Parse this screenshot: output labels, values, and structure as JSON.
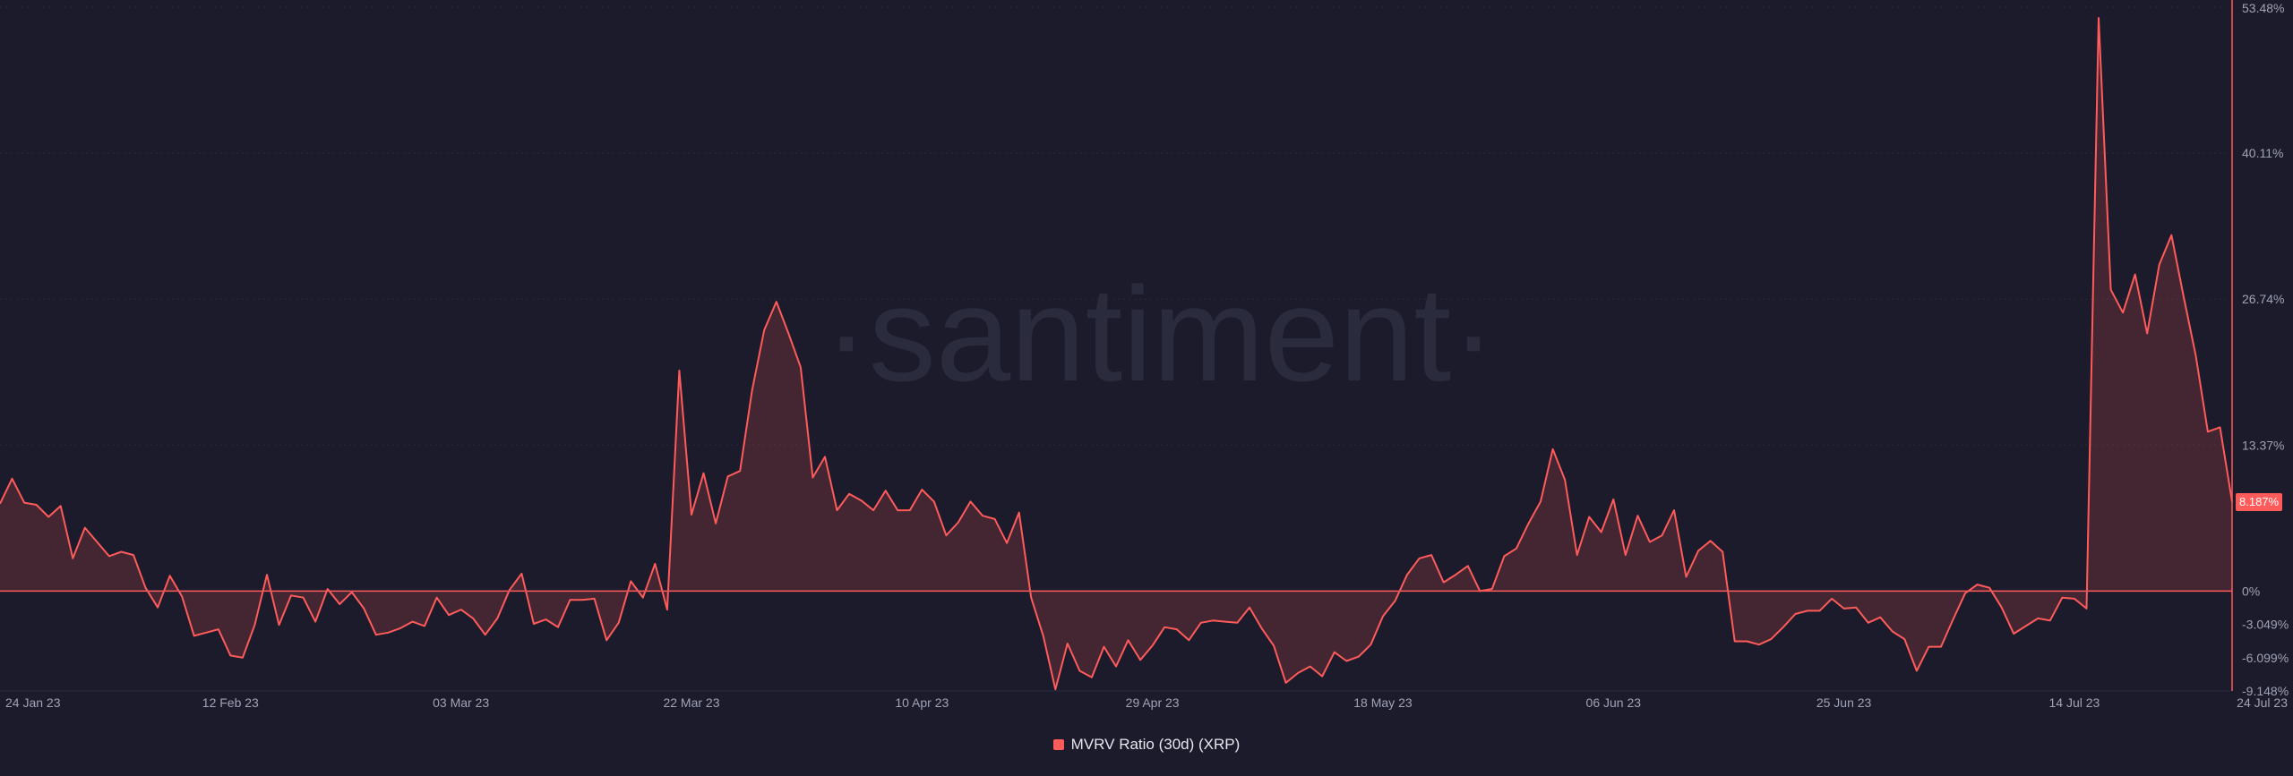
{
  "watermark": "·santiment·",
  "colors": {
    "line": "#ff5b5b",
    "fill": "rgba(255,91,91,0.18)",
    "grid": "#2a2b3d",
    "zero": "#ff5b5b",
    "background": "#1b1b2b"
  },
  "legend": {
    "label": "MVRV Ratio (30d) (XRP)"
  },
  "last_value_label": "8.187%",
  "chart_data": {
    "type": "area",
    "title": "",
    "xlabel": "",
    "ylabel": "",
    "ylim": [
      -9.148,
      53.48
    ],
    "y_ticks": [
      53.48,
      40.11,
      26.74,
      13.37,
      0,
      -3.049,
      -6.099,
      -9.148
    ],
    "y_tick_labels": [
      "53.48%",
      "40.11%",
      "26.74%",
      "13.37%",
      "0%",
      "-3.049%",
      "-6.099%",
      "-9.148%"
    ],
    "x_ticks": [
      0,
      19,
      38,
      57,
      76,
      95,
      114,
      133,
      152,
      171,
      180
    ],
    "x_tick_labels": [
      "24 Jan 23",
      "12 Feb 23",
      "03 Mar 23",
      "22 Mar 23",
      "10 Apr 23",
      "29 Apr 23",
      "18 May 23",
      "06 Jun 23",
      "25 Jun 23",
      "14 Jul 23",
      "24 Jul 23"
    ],
    "series": [
      {
        "name": "MVRV Ratio (30d) (XRP)",
        "values": [
          8,
          10.3,
          8.1,
          7.9,
          6.8,
          7.8,
          3,
          5.8,
          4.5,
          3.2,
          3.6,
          3.3,
          0.3,
          -1.5,
          1.4,
          -0.5,
          -4.1,
          -3.8,
          -3.5,
          -5.9,
          -6.1,
          -3.1,
          1.5,
          -3.1,
          -0.4,
          -0.6,
          -2.8,
          0.2,
          -1.2,
          -0.1,
          -1.6,
          -4,
          -3.8,
          -3.4,
          -2.8,
          -3.2,
          -0.6,
          -2.2,
          -1.7,
          -2.5,
          -4,
          -2.5,
          0.1,
          1.6,
          -3,
          -2.6,
          -3.3,
          -0.8,
          -0.8,
          -0.7,
          -4.5,
          -2.9,
          0.9,
          -0.6,
          2.5,
          -1.7,
          20.2,
          7,
          10.8,
          6.2,
          10.5,
          11,
          18.4,
          23.9,
          26.5,
          23.6,
          20.5,
          10.4,
          12.3,
          7.4,
          8.9,
          8.3,
          7.4,
          9.2,
          7.4,
          7.4,
          9.3,
          8.2,
          5.1,
          6.3,
          8.2,
          6.9,
          6.6,
          4.4,
          7.2,
          -0.6,
          -4.1,
          -9,
          -4.8,
          -7.3,
          -7.9,
          -5.1,
          -6.9,
          -4.5,
          -6.3,
          -5,
          -3.3,
          -3.5,
          -4.5,
          -2.9,
          -2.7,
          -2.8,
          -2.9,
          -1.5,
          -3.4,
          -5,
          -8.4,
          -7.5,
          -6.9,
          -7.8,
          -5.6,
          -6.4,
          -6,
          -4.9,
          -2.3,
          -0.9,
          1.5,
          3,
          3.3,
          0.8,
          1.5,
          2.3,
          0,
          0.2,
          3.2,
          3.9,
          6.2,
          8.2,
          13,
          10.2,
          3.3,
          6.8,
          5.4,
          8.4,
          3.3,
          6.9,
          4.5,
          5.1,
          7.4,
          1.3,
          3.7,
          4.6,
          3.6,
          -4.6,
          -4.6,
          -4.9,
          -4.4,
          -3.3,
          -2.1,
          -1.8,
          -1.8,
          -0.7,
          -1.6,
          -1.5,
          -2.9,
          -2.4,
          -3.7,
          -4.4,
          -7.3,
          -5.1,
          -5.1,
          -2.6,
          -0.2,
          0.6,
          0.3,
          -1.5,
          -3.9,
          -3.2,
          -2.5,
          -2.7,
          -0.6,
          -0.7,
          -1.6,
          52.5,
          27.6,
          25.5,
          29,
          23.6,
          29.9,
          32.6,
          27,
          21.6,
          14.6,
          15,
          8.187
        ]
      }
    ]
  }
}
